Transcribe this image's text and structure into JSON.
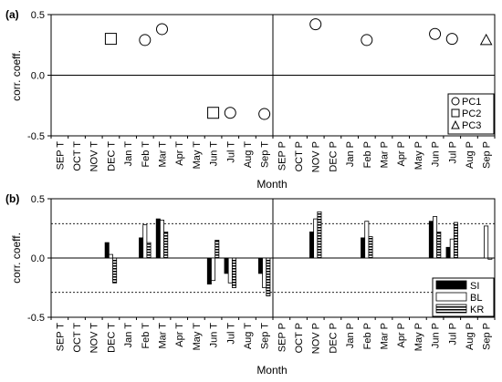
{
  "figure": {
    "months": [
      "SEP T",
      "OCT T",
      "NOV T",
      "DEC T",
      "Jan T",
      "Feb T",
      "Mar T",
      "Apr T",
      "May T",
      "Jun T",
      "Jul T",
      "Aug T",
      "Sep T",
      "SEP P",
      "OCT P",
      "NOV P",
      "DEC P",
      "Jan P",
      "Feb P",
      "Mar P",
      "Apr P",
      "May P",
      "Jun P",
      "Jul P",
      "Aug P",
      "Sep P"
    ],
    "xlabel": "Month",
    "ylabel": "corr. coeff.",
    "ylim": [
      -0.5,
      0.5
    ],
    "yticks": [
      "0.5",
      "0.0",
      "-0.5"
    ],
    "separator_after_index": 12.5,
    "threshold": 0.29
  },
  "chart_data": [
    {
      "type": "scatter",
      "panel_label": "(a)",
      "xlabel": "Month",
      "ylabel": "corr. coeff.",
      "ylim": [
        -0.5,
        0.5
      ],
      "legend": {
        "position": "bottom-right",
        "entries": [
          "PC1",
          "PC2",
          "PC3"
        ]
      },
      "series": [
        {
          "name": "PC1",
          "marker": "circle",
          "points": [
            {
              "x": "Feb T",
              "y": 0.29
            },
            {
              "x": "Mar T",
              "y": 0.38
            },
            {
              "x": "Jul T",
              "y": -0.31
            },
            {
              "x": "Sep T",
              "y": -0.32
            },
            {
              "x": "NOV P",
              "y": 0.42
            },
            {
              "x": "Feb P",
              "y": 0.29
            },
            {
              "x": "Jun P",
              "y": 0.34
            },
            {
              "x": "Jul P",
              "y": 0.3
            }
          ]
        },
        {
          "name": "PC2",
          "marker": "square",
          "points": [
            {
              "x": "DEC T",
              "y": 0.3
            },
            {
              "x": "Jun T",
              "y": -0.31
            }
          ]
        },
        {
          "name": "PC3",
          "marker": "triangle",
          "points": [
            {
              "x": "Sep P",
              "y": 0.29
            }
          ]
        }
      ]
    },
    {
      "type": "bar",
      "panel_label": "(b)",
      "xlabel": "Month",
      "ylabel": "corr. coeff.",
      "ylim": [
        -0.5,
        0.5
      ],
      "reference_lines": [
        0.29,
        -0.29
      ],
      "legend": {
        "position": "bottom-right",
        "entries": [
          "SI",
          "BL",
          "KR"
        ]
      },
      "categories": [
        "SEP T",
        "OCT T",
        "NOV T",
        "DEC T",
        "Jan T",
        "Feb T",
        "Mar T",
        "Apr T",
        "May T",
        "Jun T",
        "Jul T",
        "Aug T",
        "Sep T",
        "SEP P",
        "OCT P",
        "NOV P",
        "DEC P",
        "Jan P",
        "Feb P",
        "Mar P",
        "Apr P",
        "May P",
        "Jun P",
        "Jul P",
        "Aug P",
        "Sep P"
      ],
      "series": [
        {
          "name": "SI",
          "fill": "solid",
          "values": [
            0,
            0,
            0,
            0.13,
            0,
            0.17,
            0.33,
            0,
            0,
            -0.22,
            -0.13,
            0,
            -0.13,
            0,
            0,
            0.22,
            0,
            0,
            0.17,
            0,
            0,
            0,
            0.31,
            0.09,
            0,
            0
          ]
        },
        {
          "name": "BL",
          "fill": "empty",
          "values": [
            0,
            0,
            0,
            0.03,
            0,
            0.28,
            0.32,
            0,
            0,
            -0.19,
            -0.21,
            0,
            -0.25,
            0,
            0,
            0.33,
            0,
            0,
            0.31,
            0,
            0,
            0,
            0.35,
            0.16,
            0,
            0.27
          ]
        },
        {
          "name": "KR",
          "fill": "striped",
          "values": [
            0,
            0,
            0,
            -0.21,
            0,
            0.13,
            0.22,
            0,
            0,
            0.15,
            -0.25,
            0,
            -0.32,
            0,
            0,
            0.39,
            0,
            0,
            0.18,
            0,
            0,
            0,
            0.22,
            0.3,
            0,
            -0.01
          ]
        }
      ]
    }
  ]
}
